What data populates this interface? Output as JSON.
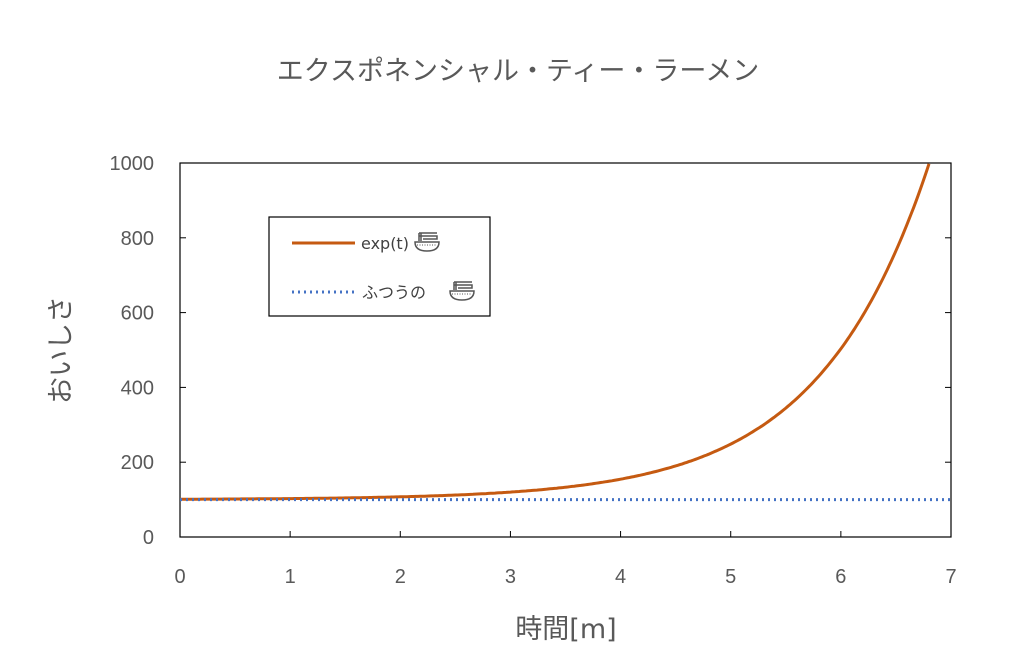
{
  "chart_data": {
    "type": "line",
    "title": "エクスポネンシャル・ティー・ラーメン",
    "xlabel": "時間[m]",
    "ylabel": "おいしさ",
    "xlim": [
      0,
      7
    ],
    "ylim": [
      0,
      1000
    ],
    "xticks": [
      0,
      1,
      2,
      3,
      4,
      5,
      6,
      7
    ],
    "yticks": [
      0,
      200,
      400,
      600,
      800,
      1000
    ],
    "grid": false,
    "legend_position": "top-left",
    "series": [
      {
        "name": "exp(t)",
        "legend_icon": "ramen-bowl-icon",
        "color": "#C55A11",
        "style": "solid",
        "x": [
          0,
          0.5,
          1,
          1.5,
          2,
          2.5,
          3,
          3.5,
          4,
          4.5,
          5,
          5.5,
          6,
          6.5,
          6.8
        ],
        "y": [
          101,
          101.6,
          102.7,
          104.5,
          107.4,
          112.2,
          120.1,
          133.1,
          154.6,
          190,
          248.4,
          344.7,
          503.4,
          765.1,
          997.8
        ]
      },
      {
        "name": "ふつうの",
        "legend_icon": "ramen-bowl-icon",
        "color": "#4472C4",
        "style": "dotted",
        "x": [
          0,
          7
        ],
        "y": [
          100,
          100
        ]
      }
    ]
  }
}
